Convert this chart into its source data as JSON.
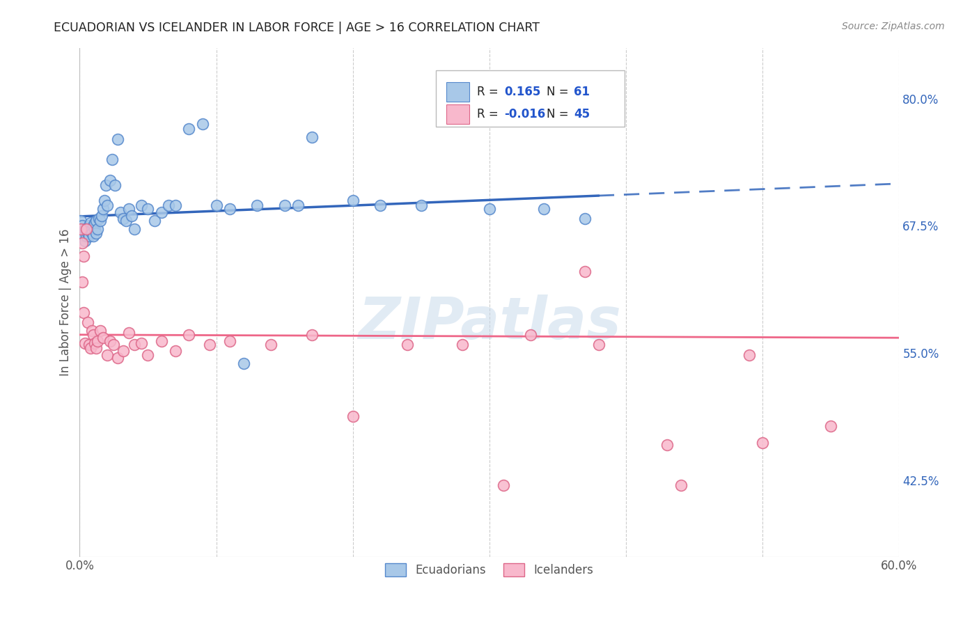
{
  "title": "ECUADORIAN VS ICELANDER IN LABOR FORCE | AGE > 16 CORRELATION CHART",
  "source": "Source: ZipAtlas.com",
  "ylabel": "In Labor Force | Age > 16",
  "x_min": 0.0,
  "x_max": 0.6,
  "y_min": 0.35,
  "y_max": 0.85,
  "y_ticks_right": [
    0.425,
    0.55,
    0.675,
    0.8
  ],
  "y_tick_labels_right": [
    "42.5%",
    "55.0%",
    "67.5%",
    "80.0%"
  ],
  "grid_color": "#cccccc",
  "background_color": "#ffffff",
  "ecuadorian_fill": "#a8c8e8",
  "ecuadorian_edge": "#5588cc",
  "icelander_fill": "#f8b8cc",
  "icelander_edge": "#dd6688",
  "ecuadorian_line_color": "#3366bb",
  "icelander_line_color": "#ee6688",
  "R_ecuadorian": 0.165,
  "N_ecuadorian": 61,
  "R_icelander": -0.016,
  "N_icelander": 45,
  "legend_R_color": "#2255cc",
  "legend_N_color": "#2255cc",
  "ecuadorian_x": [
    0.001,
    0.002,
    0.003,
    0.003,
    0.004,
    0.004,
    0.005,
    0.005,
    0.006,
    0.006,
    0.007,
    0.007,
    0.008,
    0.008,
    0.009,
    0.009,
    0.01,
    0.01,
    0.011,
    0.011,
    0.012,
    0.012,
    0.013,
    0.014,
    0.015,
    0.016,
    0.017,
    0.018,
    0.019,
    0.02,
    0.022,
    0.024,
    0.026,
    0.028,
    0.03,
    0.032,
    0.034,
    0.036,
    0.038,
    0.04,
    0.045,
    0.05,
    0.055,
    0.06,
    0.065,
    0.07,
    0.08,
    0.09,
    0.1,
    0.11,
    0.12,
    0.13,
    0.15,
    0.16,
    0.17,
    0.2,
    0.22,
    0.25,
    0.3,
    0.34,
    0.37
  ],
  "ecuadorian_y": [
    0.68,
    0.675,
    0.67,
    0.665,
    0.672,
    0.66,
    0.67,
    0.665,
    0.668,
    0.672,
    0.675,
    0.665,
    0.67,
    0.678,
    0.672,
    0.668,
    0.675,
    0.665,
    0.672,
    0.678,
    0.68,
    0.668,
    0.672,
    0.682,
    0.68,
    0.685,
    0.692,
    0.7,
    0.715,
    0.695,
    0.72,
    0.74,
    0.715,
    0.76,
    0.688,
    0.682,
    0.68,
    0.692,
    0.685,
    0.672,
    0.695,
    0.692,
    0.68,
    0.688,
    0.695,
    0.695,
    0.77,
    0.775,
    0.695,
    0.692,
    0.54,
    0.695,
    0.695,
    0.695,
    0.762,
    0.7,
    0.695,
    0.695,
    0.692,
    0.692,
    0.682
  ],
  "icelander_x": [
    0.001,
    0.002,
    0.002,
    0.003,
    0.003,
    0.004,
    0.005,
    0.006,
    0.007,
    0.008,
    0.009,
    0.01,
    0.011,
    0.012,
    0.013,
    0.015,
    0.017,
    0.02,
    0.022,
    0.025,
    0.028,
    0.032,
    0.036,
    0.04,
    0.045,
    0.05,
    0.06,
    0.07,
    0.08,
    0.095,
    0.11,
    0.14,
    0.17,
    0.2,
    0.24,
    0.28,
    0.33,
    0.38,
    0.44,
    0.5,
    0.31,
    0.37,
    0.43,
    0.49,
    0.55
  ],
  "icelander_y": [
    0.672,
    0.658,
    0.62,
    0.645,
    0.59,
    0.56,
    0.672,
    0.58,
    0.558,
    0.555,
    0.572,
    0.568,
    0.56,
    0.555,
    0.562,
    0.572,
    0.565,
    0.548,
    0.562,
    0.558,
    0.545,
    0.552,
    0.57,
    0.558,
    0.56,
    0.548,
    0.562,
    0.552,
    0.568,
    0.558,
    0.562,
    0.558,
    0.568,
    0.488,
    0.558,
    0.558,
    0.568,
    0.558,
    0.42,
    0.462,
    0.42,
    0.63,
    0.46,
    0.548,
    0.478
  ],
  "watermark": "ZIPatlas",
  "ecu_trendline_solid_end": 0.38,
  "ecu_trendline_start": 0.0,
  "ecu_trendline_end": 0.6,
  "ice_trendline_start": 0.0,
  "ice_trendline_end": 0.6
}
